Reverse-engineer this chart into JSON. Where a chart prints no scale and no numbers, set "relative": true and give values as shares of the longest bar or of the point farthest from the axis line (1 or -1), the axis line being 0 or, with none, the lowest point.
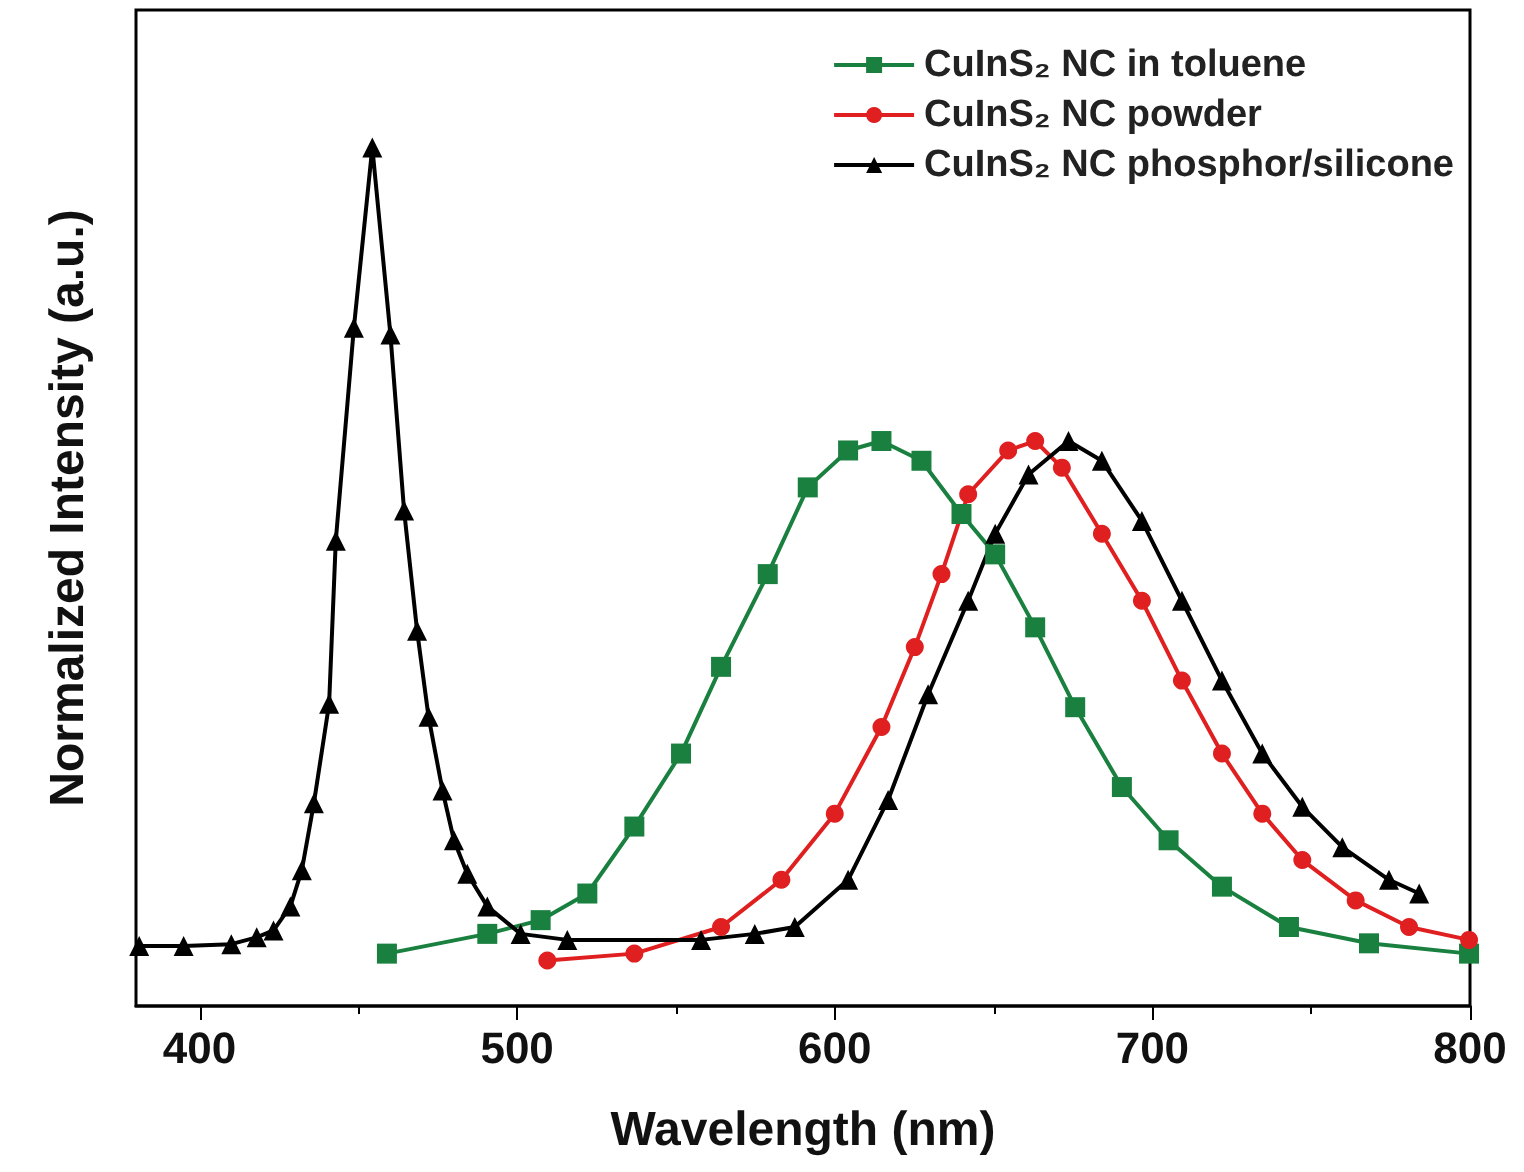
{
  "chart_data": {
    "type": "line",
    "xlabel": "Wavelength (nm)",
    "ylabel": "Normalized Intensity (a.u.)",
    "relative": true,
    "xlim": [
      380,
      800
    ],
    "xticks": [
      400,
      500,
      600,
      700,
      800
    ],
    "grid": false,
    "legend": "top right",
    "line_style": "solid",
    "series": [
      {
        "name": "CuInS₂ NC in toluene",
        "color": "#1a8040",
        "marker": "square",
        "x": [
          459,
          490.6,
          507.4,
          522.1,
          536.9,
          551.6,
          564.2,
          578.9,
          591.5,
          604.2,
          614.7,
          627.3,
          639.9,
          650.5,
          663.1,
          675.7,
          690.4,
          705.1,
          721.9,
          743,
          768.2,
          799.7
        ],
        "values": [
          0.061,
          0.084,
          0.1,
          0.131,
          0.209,
          0.294,
          0.395,
          0.503,
          0.604,
          0.647,
          0.658,
          0.635,
          0.573,
          0.526,
          0.441,
          0.348,
          0.255,
          0.193,
          0.139,
          0.092,
          0.073,
          0.061
        ]
      },
      {
        "name": "CuInS₂ NC powder",
        "color": "#e02020",
        "marker": "circle",
        "x": [
          509.5,
          536.9,
          564.2,
          583.2,
          600,
          614.7,
          625.2,
          633.6,
          642,
          654.6,
          663.1,
          671.5,
          684.1,
          696.7,
          709.3,
          721.9,
          734.6,
          747.2,
          764,
          780.8,
          799.7
        ],
        "values": [
          0.053,
          0.061,
          0.092,
          0.147,
          0.224,
          0.325,
          0.418,
          0.503,
          0.596,
          0.647,
          0.658,
          0.627,
          0.55,
          0.472,
          0.379,
          0.294,
          0.224,
          0.17,
          0.123,
          0.092,
          0.077
        ]
      },
      {
        "name": "CuInS₂ NC phosphor/silicone",
        "color": "#000000",
        "marker": "triangle",
        "x": [
          381,
          395,
          410,
          418,
          423.3,
          428.6,
          432.2,
          436,
          440.8,
          442.9,
          448.6,
          454.4,
          460.1,
          464.4,
          468.5,
          472.1,
          476.5,
          480.1,
          484.3,
          490.6,
          501.1,
          515.8,
          557.9,
          574.8,
          587.4,
          604.2,
          616.8,
          629.4,
          642,
          650.5,
          661,
          673.6,
          684.1,
          696.7,
          709.3,
          721.9,
          734.6,
          747.2,
          759.8,
          774.5,
          784
        ],
        "values": [
          0.07,
          0.07,
          0.072,
          0.08,
          0.088,
          0.116,
          0.158,
          0.236,
          0.352,
          0.542,
          0.79,
          1,
          0.782,
          0.577,
          0.437,
          0.337,
          0.251,
          0.193,
          0.154,
          0.116,
          0.084,
          0.077,
          0.077,
          0.084,
          0.092,
          0.147,
          0.24,
          0.363,
          0.472,
          0.55,
          0.619,
          0.658,
          0.635,
          0.565,
          0.472,
          0.379,
          0.294,
          0.232,
          0.185,
          0.147,
          0.131
        ]
      }
    ]
  }
}
